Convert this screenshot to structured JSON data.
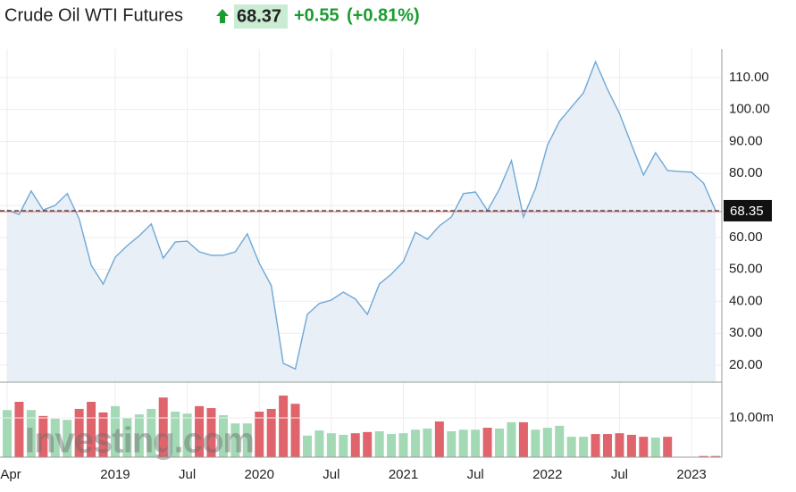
{
  "chart_data": {
    "type": "line",
    "title": "Crude Oil WTI Futures",
    "price": "68.37",
    "change": "+0.55",
    "change_pct": "(+0.81%)",
    "watermark": "Investing.com",
    "categories": [
      "Apr",
      null,
      null,
      null,
      null,
      null,
      null,
      null,
      null,
      "2019",
      null,
      null,
      null,
      null,
      null,
      "Jul",
      null,
      null,
      null,
      null,
      null,
      "2020",
      null,
      null,
      null,
      null,
      null,
      "Jul",
      null,
      null,
      null,
      null,
      null,
      "2021",
      null,
      null,
      null,
      null,
      null,
      "Jul",
      null,
      null,
      null,
      null,
      null,
      "2022",
      null,
      null,
      null,
      null,
      null,
      "Jul",
      null,
      null,
      null,
      null,
      null,
      "2023",
      null,
      null
    ],
    "series": [
      {
        "color": "#6fa8d6",
        "values": [
          68.6,
          67.2,
          74.5,
          68.6,
          70.0,
          73.7,
          65.8,
          51.3,
          45.4,
          53.8,
          57.4,
          60.5,
          64.2,
          53.5,
          58.6,
          58.8,
          55.5,
          54.4,
          54.4,
          55.5,
          61.1,
          51.9,
          44.9,
          20.6,
          18.8,
          35.9,
          39.3,
          40.4,
          42.9,
          40.7,
          35.9,
          45.4,
          48.5,
          52.4,
          61.6,
          59.4,
          63.6,
          66.4,
          73.7,
          74.2,
          68.4,
          75.1,
          84.0,
          66.4,
          75.3,
          88.8,
          96.3,
          100.8,
          105.2,
          115.0,
          106.3,
          98.8,
          89.0,
          79.5,
          86.5,
          80.9,
          80.6,
          80.4,
          77.0,
          68.4
        ]
      }
    ],
    "ylim": [
      14.7,
      118.9
    ],
    "yticks": [
      {
        "value": 20,
        "label": "20.00"
      },
      {
        "value": 30,
        "label": "30.00"
      },
      {
        "value": 40,
        "label": "40.00"
      },
      {
        "value": 50,
        "label": "50.00"
      },
      {
        "value": 60,
        "label": "60.00"
      },
      {
        "value": 70,
        "label": "70.00"
      },
      {
        "value": 80,
        "label": "80.00"
      },
      {
        "value": 90,
        "label": "90.00"
      },
      {
        "value": 100,
        "label": "100.00"
      },
      {
        "value": 110,
        "label": "110.00"
      }
    ],
    "last_price": 68.35,
    "grid": true,
    "volume": {
      "type": "bar",
      "values": [
        12.0,
        14.1,
        12.0,
        10.5,
        9.8,
        9.5,
        12.3,
        14.1,
        11.4,
        13.0,
        10.0,
        10.9,
        12.3,
        15.2,
        11.6,
        11.1,
        13.0,
        12.5,
        10.7,
        8.6,
        8.6,
        11.6,
        12.3,
        15.7,
        13.6,
        5.5,
        6.8,
        6.1,
        5.7,
        6.1,
        6.4,
        6.6,
        5.9,
        6.1,
        7.0,
        7.3,
        9.1,
        6.6,
        7.0,
        7.0,
        7.5,
        7.3,
        8.9,
        8.9,
        7.0,
        7.5,
        8.0,
        5.2,
        5.2,
        5.9,
        5.9,
        6.1,
        5.7,
        5.2,
        5.0,
        5.2,
        null,
        null,
        0.3,
        0.3
      ],
      "colors": [
        "#a3d9b5",
        "#e0646b",
        "#a3d9b5",
        "#e0646b",
        "#a3d9b5",
        "#a3d9b5",
        "#e0646b",
        "#e0646b",
        "#e0646b",
        "#a3d9b5",
        "#a3d9b5",
        "#a3d9b5",
        "#a3d9b5",
        "#e0646b",
        "#a3d9b5",
        "#a3d9b5",
        "#e0646b",
        "#e0646b",
        "#a3d9b5",
        "#a3d9b5",
        "#a3d9b5",
        "#e0646b",
        "#e0646b",
        "#e0646b",
        "#e0646b",
        "#a3d9b5",
        "#a3d9b5",
        "#a3d9b5",
        "#a3d9b5",
        "#e0646b",
        "#e0646b",
        "#a3d9b5",
        "#a3d9b5",
        "#a3d9b5",
        "#a3d9b5",
        "#a3d9b5",
        "#e0646b",
        "#a3d9b5",
        "#a3d9b5",
        "#a3d9b5",
        "#e0646b",
        "#a3d9b5",
        "#a3d9b5",
        "#e0646b",
        "#a3d9b5",
        "#a3d9b5",
        "#a3d9b5",
        "#a3d9b5",
        "#a3d9b5",
        "#e0646b",
        "#e0646b",
        "#e0646b",
        "#e0646b",
        "#e0646b",
        "#a3d9b5",
        "#e0646b",
        "#e0646b",
        "#e0646b",
        "#e0646b",
        "#e0646b"
      ],
      "ylim": [
        0,
        18.2
      ],
      "yticks": [
        {
          "value": 10,
          "label": "10.00m"
        }
      ]
    }
  }
}
